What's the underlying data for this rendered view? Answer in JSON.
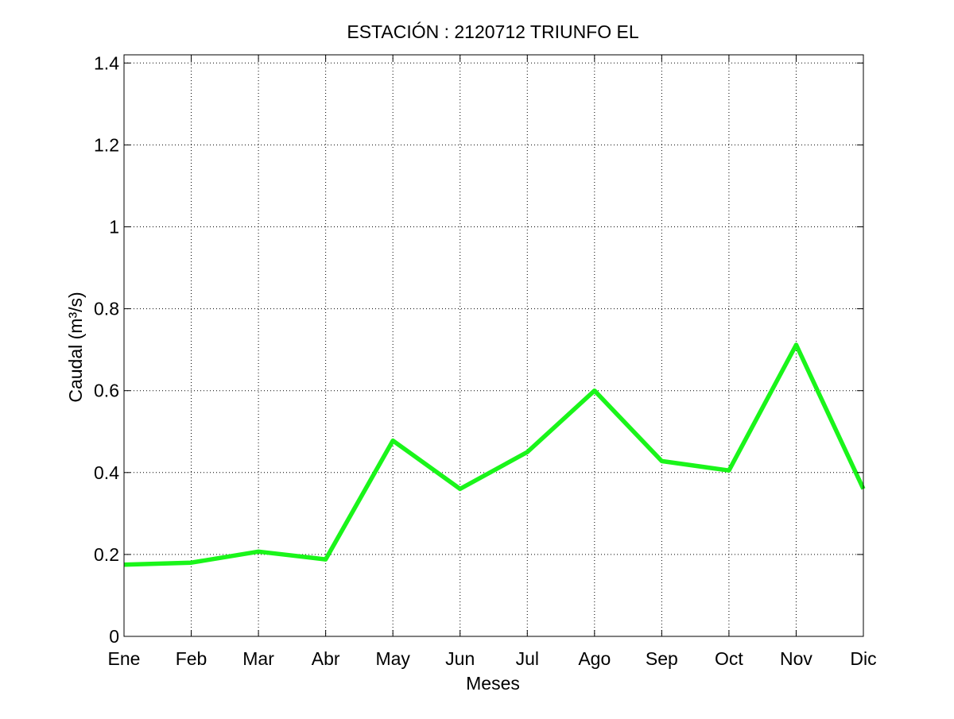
{
  "chart_data": {
    "type": "line",
    "title": "ESTACIÓN :  2120712  TRIUNFO EL",
    "xlabel": "Meses",
    "ylabel": "Caudal (m³/s)",
    "categories": [
      "Ene",
      "Feb",
      "Mar",
      "Abr",
      "May",
      "Jun",
      "Jul",
      "Ago",
      "Sep",
      "Oct",
      "Nov",
      "Dic"
    ],
    "series": [
      {
        "values": [
          0.175,
          0.18,
          0.207,
          0.188,
          0.478,
          0.36,
          0.45,
          0.6,
          0.428,
          0.405,
          0.712,
          0.36
        ],
        "color": "#1AF51A"
      }
    ],
    "ylim": [
      0,
      1.42
    ],
    "yticks": [
      0,
      0.2,
      0.4,
      0.6,
      0.8,
      1,
      1.2,
      1.4
    ],
    "ytick_labels": [
      "0",
      "0.2",
      "0.4",
      "0.6",
      "0.8",
      "1",
      "1.2",
      "1.4"
    ],
    "grid": true,
    "grid_style": "dotted"
  }
}
